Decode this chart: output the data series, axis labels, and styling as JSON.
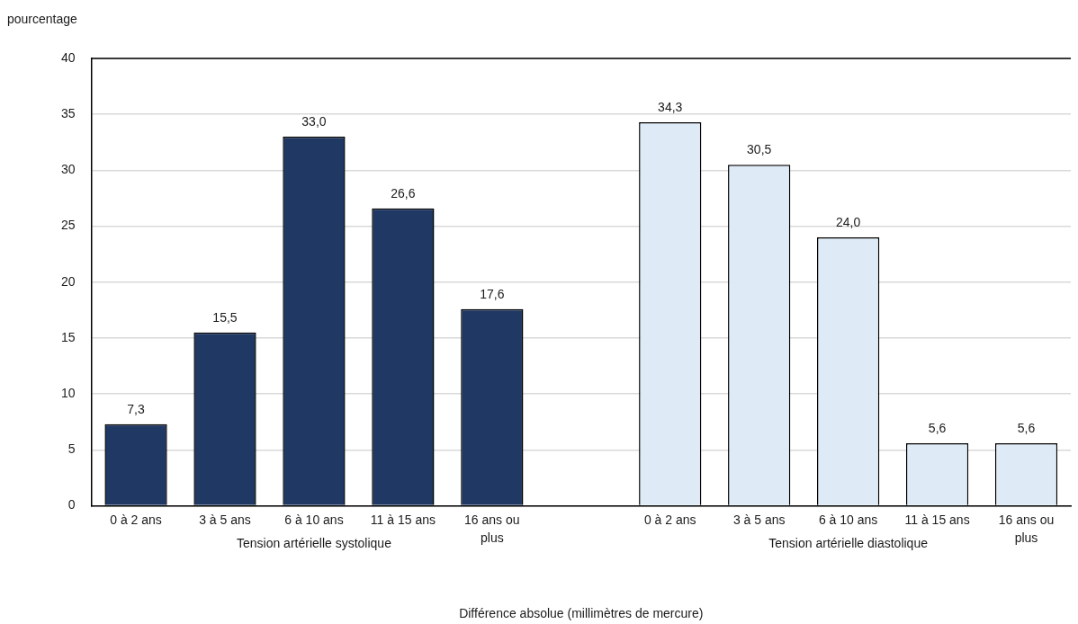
{
  "chart_data": {
    "type": "bar",
    "ylabel": "pourcentage",
    "xlabel": "Différence absolue (millimètres de mercure)",
    "categories": [
      "0 à 2 ans",
      "3 à 5 ans",
      "6 à 10 ans",
      "11 à 15 ans",
      "16 ans ou plus",
      null,
      "0 à 2 ans",
      "3 à 5 ans",
      "6 à 10 ans",
      "11 à 15 ans",
      "16 ans ou plus"
    ],
    "series": [
      {
        "color": "#203864",
        "values": [
          7.3,
          15.5,
          33.0,
          26.6,
          17.6,
          null,
          null,
          null,
          null,
          null,
          null
        ],
        "value_labels": [
          "7,3",
          "15,5",
          "33,0",
          "26,6",
          "17,6",
          null,
          null,
          null,
          null,
          null,
          null
        ]
      },
      {
        "color": "#deebf7",
        "values": [
          null,
          null,
          null,
          null,
          null,
          null,
          34.3,
          30.5,
          24.0,
          5.6,
          5.6
        ],
        "value_labels": [
          null,
          null,
          null,
          null,
          null,
          null,
          "34,3",
          "30,5",
          "24,0",
          "5,6",
          "5,6"
        ]
      }
    ],
    "annotations": [
      "Tension artérielle systolique",
      "Tension artérielle diastolique"
    ],
    "ylim": [
      0,
      40
    ],
    "yticks": [
      0,
      5,
      10,
      15,
      20,
      25,
      30,
      35,
      40
    ],
    "grid": "y"
  }
}
